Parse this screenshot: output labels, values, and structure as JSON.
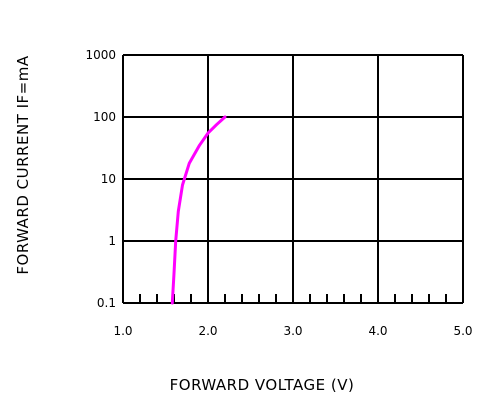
{
  "chart_data": {
    "type": "line",
    "title": "",
    "xlabel": "FORWARD VOLTAGE  (V)",
    "ylabel": "FORWARD  CURRENT  IF=mA",
    "x_tick_labels": [
      "1.0",
      "2.0",
      "3.0",
      "4.0",
      "5.0"
    ],
    "y_tick_labels": [
      "0.1",
      "1",
      "10",
      "100",
      "1000"
    ],
    "xlim": [
      1.0,
      5.0
    ],
    "ylim": [
      0.1,
      1000
    ],
    "y_scale": "log",
    "grid": true,
    "line_color": "#ff00ff",
    "series": [
      {
        "x": [
          1.58,
          1.6,
          1.62,
          1.65,
          1.7,
          1.78,
          1.9,
          2.0,
          2.1,
          2.2
        ],
        "y": [
          0.1,
          0.3,
          1,
          3,
          8,
          18,
          35,
          55,
          75,
          100
        ]
      }
    ]
  }
}
